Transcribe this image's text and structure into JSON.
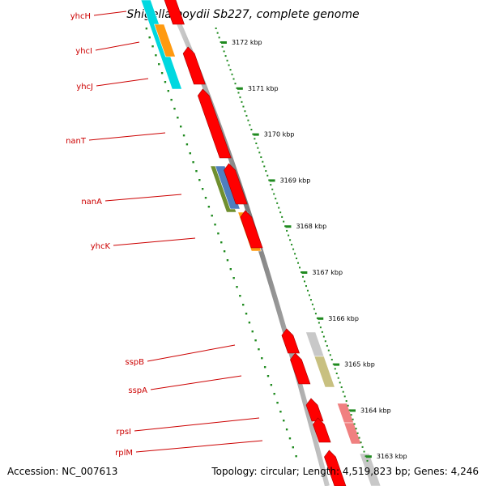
{
  "title": "Shigella boydii Sb227, complete genome",
  "footer": {
    "accession": "Accession: NC_007613",
    "topology": "Topology: circular; Length: 4,519,823 bp; Genes: 4,246"
  },
  "genes": [
    {
      "name": "yhcH",
      "color": "#00d8e0"
    },
    {
      "name": "yhcI",
      "color": "#00d8e0"
    },
    {
      "name": "yhcJ",
      "color": "#00d8e0"
    },
    {
      "name": "nanT",
      "color": "#ff0000"
    },
    {
      "name": "nanA",
      "color": "#4f7fbf"
    },
    {
      "name": "yhcK",
      "color": "#ff9a10"
    },
    {
      "name": "sspB",
      "color": "#c8c8c8"
    },
    {
      "name": "sspA",
      "color": "#c8c080"
    },
    {
      "name": "rpsI",
      "color": "#f08080"
    },
    {
      "name": "rplM",
      "color": "#f08080"
    }
  ],
  "ticks": [
    "3172 kbp",
    "3171 kbp",
    "3170 kbp",
    "3169 kbp",
    "3168 kbp",
    "3167 kbp",
    "3166 kbp",
    "3165 kbp",
    "3164 kbp",
    "3163 kbp"
  ],
  "colors": {
    "cog_track": "#ff0000",
    "label": "#cc0000",
    "ruler": "#1f8a1f",
    "backbone": "#888888"
  }
}
